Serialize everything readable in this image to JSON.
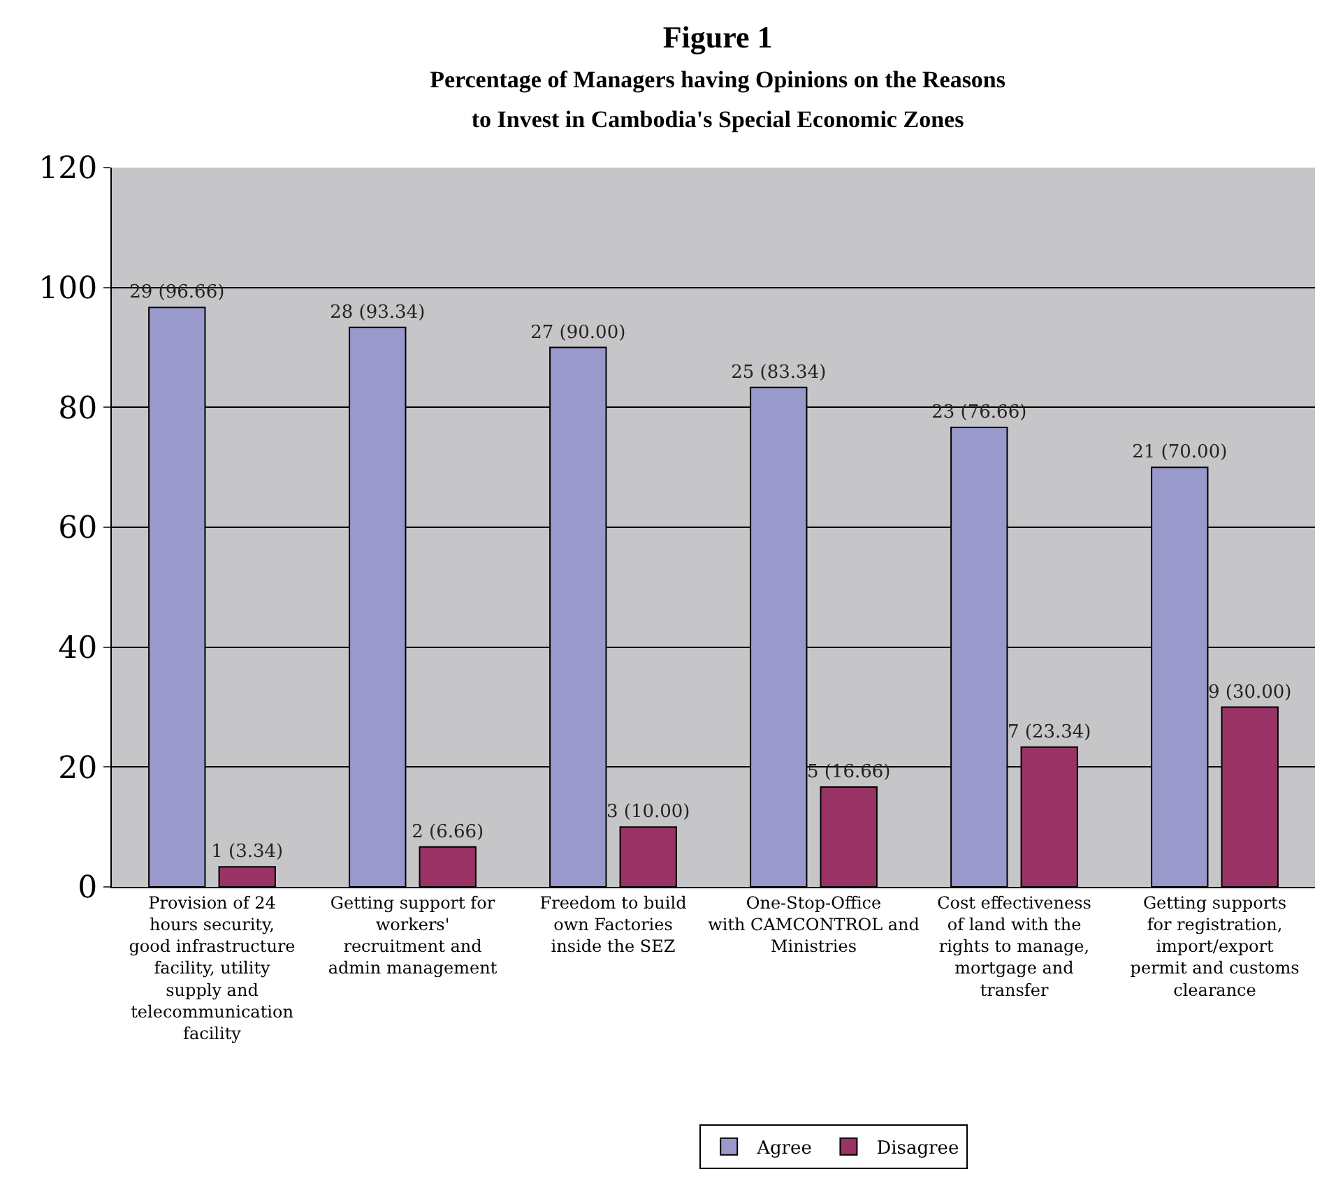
{
  "chart_data": {
    "type": "bar",
    "title": "Figure 1",
    "subtitle": "Percentage of Managers having Opinions on the Reasons\nto Invest in Cambodia's Special Economic Zones",
    "categories": [
      "Provision of 24 hours security, good infrastructure facility, utility supply and telecommunication facility",
      "Getting support for workers' recruitment and admin management",
      "Freedom to build own Factories inside the SEZ",
      "One-Stop-Office with CAMCONTROL and Ministries",
      "Cost effectiveness of land with the rights to manage, mortgage and transfer",
      "Getting supports for registration, import/export permit and customs clearance"
    ],
    "series": [
      {
        "name": "Agree",
        "color": "#9999cc",
        "values": [
          96.66,
          93.34,
          90.0,
          83.34,
          76.66,
          70.0
        ],
        "value_labels": [
          "29 (96.66)",
          "28 (93.34)",
          "27 (90.00)",
          "25 (83.34)",
          "23 (76.66)",
          "21 (70.00)"
        ]
      },
      {
        "name": "Disagree",
        "color": "#993366",
        "values": [
          3.34,
          6.66,
          10.0,
          16.66,
          23.34,
          30.0
        ],
        "value_labels": [
          "1 (3.34)",
          "2 (6.66)",
          "3 (10.00)",
          "5 (16.66)",
          "7 (23.34)",
          "9 (30.00)"
        ]
      }
    ],
    "ylim": [
      0,
      120
    ],
    "yticks": [
      0,
      20,
      40,
      60,
      80,
      100,
      120
    ],
    "grid": "y",
    "legend": "bottom"
  }
}
